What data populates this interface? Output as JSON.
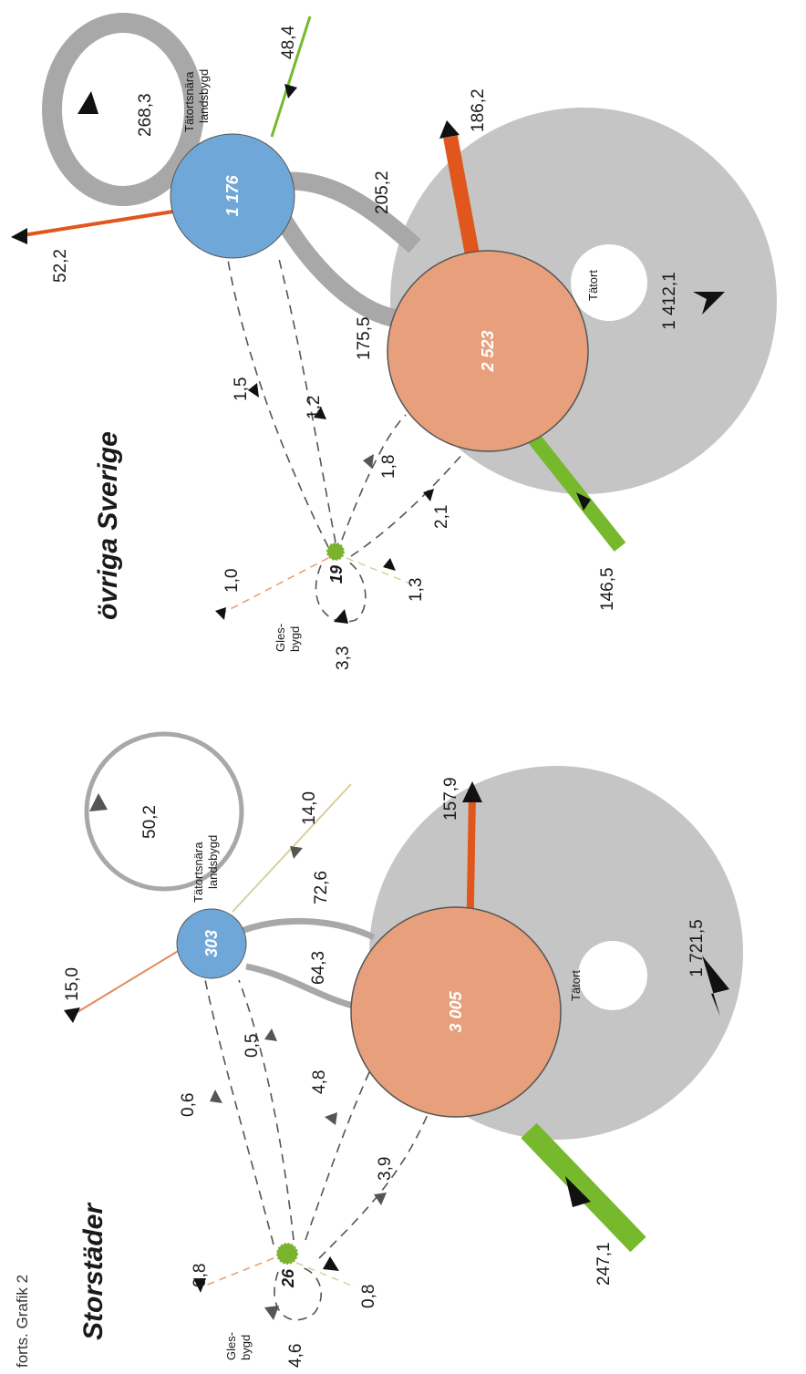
{
  "caption": "forts. Grafik 2",
  "colors": {
    "tatort": "#e8a07c",
    "tatortsnara": "#6fa8d8",
    "glesbygd": "#7ab32e",
    "inflow": "#77b92d",
    "outflow": "#e0561c",
    "internal": "#b3b3b3",
    "loop": "#9e9e9e"
  },
  "storstader": {
    "title": "Storstäder",
    "tatort": {
      "value": "3 005",
      "label": "Tätort",
      "internal": "1 721,5"
    },
    "tatortsnara": {
      "value": "303",
      "label_line1": "Tätortsnära",
      "label_line2": "landsbygd",
      "loop": "50,2"
    },
    "glesbygd": {
      "value": "26",
      "label_line1": "Gles-",
      "label_line2": "bygd",
      "loop": "4,6"
    },
    "flows": {
      "tatort_in": "247,1",
      "tatort_out": "157,9",
      "tatortsnara_out": "15,0",
      "tatortsnara_in": "14,0",
      "glesbygd_out": "0,8",
      "glesbygd_in": "0,8",
      "tatortsnara_to_tatort": "72,6",
      "tatort_to_tatortsnara": "64,3",
      "glesbygd_to_tatortsnara": "0,6",
      "tatortsnara_to_glesbygd": "0,5",
      "tatort_to_glesbygd": "4,8",
      "glesbygd_to_tatort": "3,9"
    }
  },
  "ovriga": {
    "title": "övriga Sverige",
    "tatort": {
      "value": "2 523",
      "label": "Tätort",
      "internal": "1 412,1"
    },
    "tatortsnara": {
      "value": "1 176",
      "label_line1": "Tätortsnära",
      "label_line2": "landsbygd",
      "loop": "268,3"
    },
    "glesbygd": {
      "value": "19",
      "label_line1": "Gles-",
      "label_line2": "bygd",
      "loop": "3,3"
    },
    "flows": {
      "tatort_in": "146,5",
      "tatort_out": "186,2",
      "tatortsnara_out": "52,2",
      "tatortsnara_in": "48,4",
      "glesbygd_out": "1,0",
      "glesbygd_in": "1,3",
      "tatortsnara_to_tatort": "205,2",
      "tatort_to_tatortsnara": "175,5",
      "glesbygd_to_tatortsnara": "1,5",
      "tatortsnara_to_glesbygd": "1,2",
      "tatort_to_glesbygd": "1,8",
      "glesbygd_to_tatort": "2,1"
    }
  }
}
